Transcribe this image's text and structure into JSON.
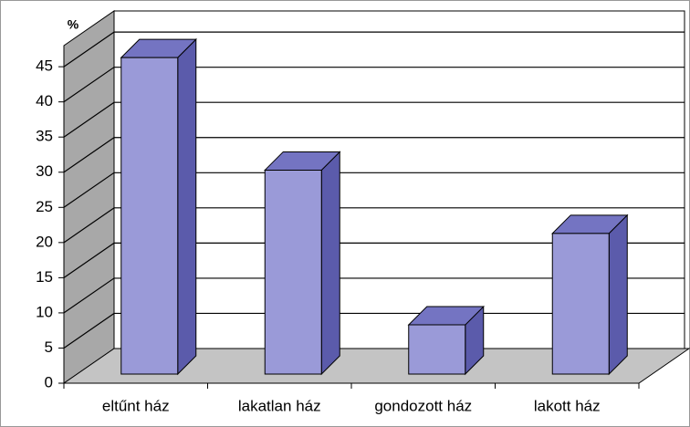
{
  "chart_data": {
    "type": "bar3d",
    "y_unit_label": "%",
    "categories": [
      "eltűnt ház",
      "lakatlan ház",
      "gondozott ház",
      "lakott ház"
    ],
    "values": [
      45,
      29,
      7,
      20
    ],
    "color": "#9a9ad8",
    "side_color": "#5b5bab",
    "top_color": "#7474c2",
    "ylim": [
      0,
      48
    ],
    "yticks": [
      0,
      5,
      10,
      15,
      20,
      25,
      30,
      35,
      40,
      45
    ],
    "grid": true
  }
}
